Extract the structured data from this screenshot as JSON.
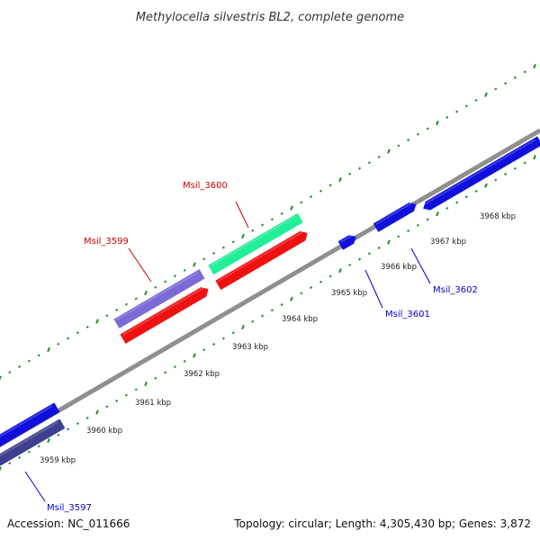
{
  "title": "Methylocella silvestris BL2, complete genome",
  "accession": "Accession: NC_011666",
  "summary": "Topology: circular; Length: 4,305,430 bp; Genes: 3,872",
  "colors": {
    "background": "#ffffff",
    "backbone": "#8f8f8f",
    "tick": "#1e8c1e",
    "label_forward": "#cc0000",
    "label_reverse": "#0000cc"
  },
  "kbp_labels": [
    {
      "text": "3959 kbp",
      "kbp": 3959
    },
    {
      "text": "3960 kbp",
      "kbp": 3960
    },
    {
      "text": "3961 kbp",
      "kbp": 3961
    },
    {
      "text": "3962 kbp",
      "kbp": 3962
    },
    {
      "text": "3963 kbp",
      "kbp": 3963
    },
    {
      "text": "3964 kbp",
      "kbp": 3964
    },
    {
      "text": "3965 kbp",
      "kbp": 3965
    },
    {
      "text": "3966 kbp",
      "kbp": 3966
    },
    {
      "text": "3967 kbp",
      "kbp": 3967
    },
    {
      "text": "3968 kbp",
      "kbp": 3968
    }
  ],
  "gene_labels": [
    {
      "text": "Msil_3600",
      "strand": "forward"
    },
    {
      "text": "Msil_3599",
      "strand": "forward"
    },
    {
      "text": "Msil_3601",
      "strand": "reverse"
    },
    {
      "text": "Msil_3602",
      "strand": "reverse"
    },
    {
      "text": "Msil_3597",
      "strand": "reverse"
    }
  ],
  "features": [
    {
      "name": "cds-msil-3597",
      "color": "#1010dd"
    },
    {
      "name": "gene-msil-3597",
      "color": "#3f3f8f"
    },
    {
      "name": "gene-msil-3599",
      "color": "#7a6bd6"
    },
    {
      "name": "cds-msil-3599",
      "color": "#ee1111"
    },
    {
      "name": "gene-msil-3600",
      "color": "#22ee99"
    },
    {
      "name": "cds-msil-3600",
      "color": "#ee1111"
    },
    {
      "name": "cds-msil-3601",
      "color": "#1010dd"
    },
    {
      "name": "cds-msil-3602-a",
      "color": "#1010dd"
    },
    {
      "name": "cds-msil-3602-b",
      "color": "#1010dd"
    }
  ]
}
